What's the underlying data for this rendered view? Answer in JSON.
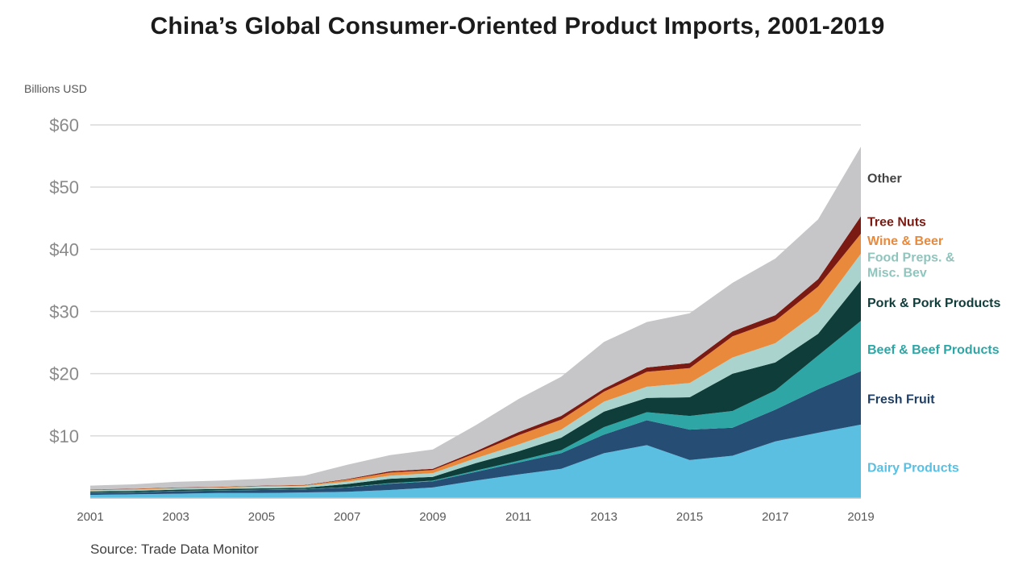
{
  "chart_data": {
    "type": "area",
    "stacked": true,
    "title": "China’s Global Consumer-Oriented Product Imports, 2001-2019",
    "ylabel": "Billions USD",
    "source": "Source: Trade Data Monitor",
    "ylim": [
      0,
      60
    ],
    "y_ticks": [
      "$10",
      "$20",
      "$30",
      "$40",
      "$50",
      "$60"
    ],
    "y_tick_values": [
      10,
      20,
      30,
      40,
      50,
      60
    ],
    "x": [
      2001,
      2002,
      2003,
      2004,
      2005,
      2006,
      2007,
      2008,
      2009,
      2010,
      2011,
      2012,
      2013,
      2014,
      2015,
      2016,
      2017,
      2018,
      2019
    ],
    "x_ticks": [
      "2001",
      "2003",
      "2005",
      "2007",
      "2009",
      "2011",
      "2013",
      "2015",
      "2017",
      "2019"
    ],
    "x_tick_values": [
      2001,
      2003,
      2005,
      2007,
      2009,
      2011,
      2013,
      2015,
      2017,
      2019
    ],
    "grid": true,
    "legend_placement": "right, labels aligned to series",
    "series": [
      {
        "name": "Dairy Products",
        "color": "#5bbfe2",
        "label_value": 5,
        "values": [
          0.5,
          0.6,
          0.7,
          0.8,
          0.8,
          0.9,
          1.0,
          1.3,
          1.7,
          2.8,
          3.8,
          4.7,
          7.2,
          8.5,
          6.1,
          6.8,
          9.1,
          10.5,
          11.8
        ]
      },
      {
        "name": "Fresh Fruit",
        "color": "#264d73",
        "label_value": 16,
        "values": [
          0.3,
          0.3,
          0.4,
          0.4,
          0.5,
          0.5,
          0.7,
          1.0,
          1.0,
          1.4,
          1.9,
          2.5,
          3.0,
          4.0,
          4.9,
          4.5,
          5.1,
          7.0,
          8.6
        ]
      },
      {
        "name": "Beef & Beef Products",
        "color": "#2ea6a6",
        "label_value": 24,
        "values": [
          0.05,
          0.05,
          0.05,
          0.05,
          0.05,
          0.05,
          0.05,
          0.1,
          0.1,
          0.2,
          0.3,
          0.5,
          1.2,
          1.3,
          2.2,
          2.7,
          3.1,
          5.4,
          8.1
        ]
      },
      {
        "name": "Pork & Pork Products",
        "color": "#0f3d3a",
        "label_value": 31.5,
        "values": [
          0.2,
          0.2,
          0.2,
          0.2,
          0.2,
          0.2,
          0.5,
          0.7,
          0.6,
          1.2,
          1.5,
          2.0,
          2.5,
          2.3,
          3.0,
          6.0,
          4.5,
          3.5,
          6.5
        ]
      },
      {
        "name": "Food Preps. & Misc. Bev",
        "color": "#a9d3cc",
        "label_value": 37.5,
        "values": [
          0.2,
          0.2,
          0.2,
          0.2,
          0.3,
          0.3,
          0.4,
          0.5,
          0.6,
          0.8,
          1.1,
          1.3,
          1.6,
          1.8,
          2.3,
          2.6,
          3.1,
          3.6,
          4.3
        ]
      },
      {
        "name": "Wine & Beer",
        "color": "#e8893c",
        "label_value": 41.5,
        "values": [
          0.1,
          0.1,
          0.1,
          0.1,
          0.1,
          0.1,
          0.3,
          0.5,
          0.5,
          0.8,
          1.5,
          1.6,
          1.6,
          2.4,
          2.4,
          3.4,
          3.6,
          4.0,
          3.2
        ]
      },
      {
        "name": "Tree Nuts",
        "color": "#7a1a12",
        "label_value": 44.5,
        "values": [
          0.05,
          0.05,
          0.05,
          0.05,
          0.05,
          0.05,
          0.1,
          0.2,
          0.2,
          0.3,
          0.5,
          0.6,
          0.5,
          0.7,
          0.8,
          0.8,
          0.9,
          1.2,
          2.8
        ]
      },
      {
        "name": "Other",
        "color": "#c6c6c9",
        "label_value": 51.5,
        "values": [
          0.6,
          0.7,
          0.9,
          1.0,
          1.1,
          1.5,
          2.3,
          2.6,
          3.1,
          4.2,
          5.3,
          6.3,
          7.5,
          7.3,
          8.0,
          7.8,
          9.1,
          9.6,
          11.2
        ]
      }
    ]
  }
}
